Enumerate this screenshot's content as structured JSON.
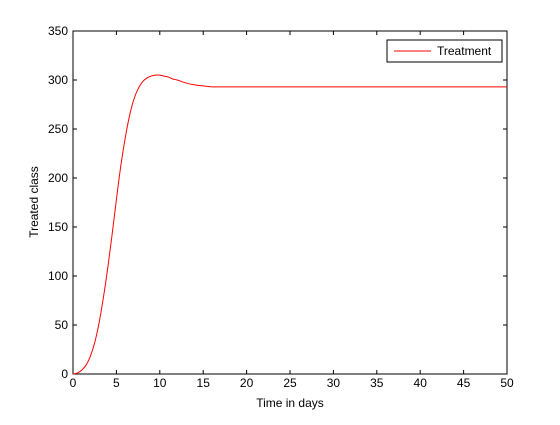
{
  "chart_data": {
    "type": "line",
    "xlabel": "Time in days",
    "ylabel": "Treated class",
    "xlim": [
      0,
      50
    ],
    "ylim": [
      0,
      350
    ],
    "xticks": [
      0,
      5,
      10,
      15,
      20,
      25,
      30,
      35,
      40,
      45,
      50
    ],
    "yticks": [
      0,
      50,
      100,
      150,
      200,
      250,
      300,
      350
    ],
    "grid": false,
    "legend_position": "top-right",
    "series": [
      {
        "name": "Treatment",
        "color": "#ff0000",
        "x": [
          0,
          0.5,
          1,
          1.5,
          2,
          2.5,
          3,
          3.5,
          4,
          4.5,
          5,
          5.5,
          6,
          6.5,
          7,
          7.5,
          8,
          8.5,
          9,
          9.5,
          10,
          10.5,
          11,
          11.5,
          12,
          13,
          14,
          15,
          16,
          17,
          18,
          20,
          22,
          25,
          30,
          35,
          40,
          45,
          50
        ],
        "y": [
          0,
          1,
          4,
          9,
          18,
          32,
          52,
          78,
          108,
          142,
          178,
          212,
          240,
          263,
          280,
          291,
          298,
          302,
          304,
          305,
          305,
          304,
          303,
          301,
          300,
          297,
          295,
          294,
          293,
          293,
          293,
          293,
          293,
          293,
          293,
          293,
          293,
          293,
          293
        ]
      }
    ]
  }
}
